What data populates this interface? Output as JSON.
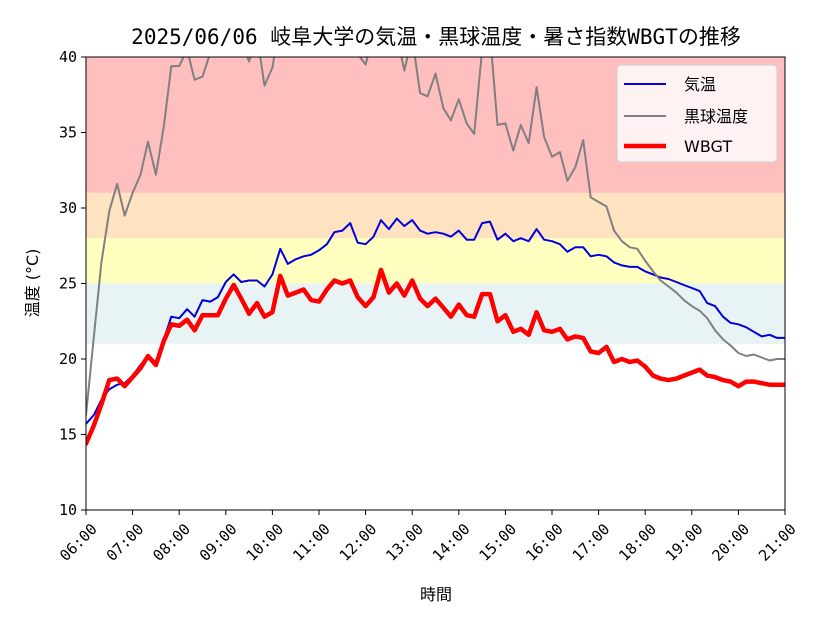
{
  "chart_data": {
    "type": "line",
    "title": "2025/06/06 岐阜大学の気温・黒球温度・暑さ指数WBGTの推移",
    "xlabel": "時間",
    "ylabel": "温度 (°C)",
    "xlim": [
      6.0,
      21.0
    ],
    "ylim": [
      10,
      40
    ],
    "x_ticks": [
      "06:00",
      "07:00",
      "08:00",
      "09:00",
      "10:00",
      "11:00",
      "12:00",
      "13:00",
      "14:00",
      "15:00",
      "16:00",
      "17:00",
      "18:00",
      "19:00",
      "20:00",
      "21:00"
    ],
    "y_ticks": [
      "10",
      "15",
      "20",
      "25",
      "30",
      "35",
      "40"
    ],
    "legend_position": "top-right",
    "bands": [
      {
        "from": 31,
        "to": 40,
        "color": "#ffbfbf"
      },
      {
        "from": 28,
        "to": 31,
        "color": "#ffe2bf"
      },
      {
        "from": 25,
        "to": 28,
        "color": "#ffffbf"
      },
      {
        "from": 21,
        "to": 25,
        "color": "#e8f3f5"
      }
    ],
    "series": [
      {
        "name": "気温",
        "color": "#0000dd",
        "width": 2,
        "points": [
          [
            6.0,
            15.7
          ],
          [
            6.17,
            16.3
          ],
          [
            6.33,
            17.3
          ],
          [
            6.5,
            18.0
          ],
          [
            6.67,
            18.3
          ],
          [
            6.83,
            18.4
          ],
          [
            7.0,
            18.9
          ],
          [
            7.17,
            19.6
          ],
          [
            7.33,
            20.2
          ],
          [
            7.5,
            19.8
          ],
          [
            7.67,
            21.3
          ],
          [
            7.83,
            22.8
          ],
          [
            8.0,
            22.7
          ],
          [
            8.17,
            23.3
          ],
          [
            8.33,
            22.8
          ],
          [
            8.5,
            23.9
          ],
          [
            8.67,
            23.8
          ],
          [
            8.83,
            24.1
          ],
          [
            9.0,
            25.1
          ],
          [
            9.17,
            25.6
          ],
          [
            9.33,
            25.1
          ],
          [
            9.5,
            25.2
          ],
          [
            9.67,
            25.2
          ],
          [
            9.83,
            24.8
          ],
          [
            10.0,
            25.6
          ],
          [
            10.17,
            27.3
          ],
          [
            10.33,
            26.3
          ],
          [
            10.5,
            26.6
          ],
          [
            10.67,
            26.8
          ],
          [
            10.83,
            26.9
          ],
          [
            11.0,
            27.2
          ],
          [
            11.17,
            27.6
          ],
          [
            11.33,
            28.4
          ],
          [
            11.5,
            28.5
          ],
          [
            11.67,
            29.0
          ],
          [
            11.83,
            27.7
          ],
          [
            12.0,
            27.6
          ],
          [
            12.17,
            28.1
          ],
          [
            12.33,
            29.2
          ],
          [
            12.5,
            28.6
          ],
          [
            12.67,
            29.3
          ],
          [
            12.83,
            28.8
          ],
          [
            13.0,
            29.2
          ],
          [
            13.17,
            28.5
          ],
          [
            13.33,
            28.3
          ],
          [
            13.5,
            28.4
          ],
          [
            13.67,
            28.3
          ],
          [
            13.83,
            28.1
          ],
          [
            14.0,
            28.5
          ],
          [
            14.17,
            27.9
          ],
          [
            14.33,
            27.9
          ],
          [
            14.5,
            29.0
          ],
          [
            14.67,
            29.1
          ],
          [
            14.83,
            27.9
          ],
          [
            15.0,
            28.3
          ],
          [
            15.17,
            27.8
          ],
          [
            15.33,
            28.0
          ],
          [
            15.5,
            27.8
          ],
          [
            15.67,
            28.6
          ],
          [
            15.83,
            27.9
          ],
          [
            16.0,
            27.8
          ],
          [
            16.17,
            27.6
          ],
          [
            16.33,
            27.1
          ],
          [
            16.5,
            27.4
          ],
          [
            16.67,
            27.4
          ],
          [
            16.83,
            26.8
          ],
          [
            17.0,
            26.9
          ],
          [
            17.17,
            26.8
          ],
          [
            17.33,
            26.4
          ],
          [
            17.5,
            26.2
          ],
          [
            17.67,
            26.1
          ],
          [
            17.83,
            26.1
          ],
          [
            18.0,
            25.8
          ],
          [
            18.17,
            25.6
          ],
          [
            18.33,
            25.4
          ],
          [
            18.5,
            25.3
          ],
          [
            18.67,
            25.1
          ],
          [
            18.83,
            24.9
          ],
          [
            19.0,
            24.7
          ],
          [
            19.17,
            24.5
          ],
          [
            19.33,
            23.7
          ],
          [
            19.5,
            23.5
          ],
          [
            19.67,
            22.8
          ],
          [
            19.83,
            22.4
          ],
          [
            20.0,
            22.3
          ],
          [
            20.17,
            22.1
          ],
          [
            20.33,
            21.8
          ],
          [
            20.5,
            21.5
          ],
          [
            20.67,
            21.6
          ],
          [
            20.83,
            21.4
          ],
          [
            21.0,
            21.4
          ]
        ]
      },
      {
        "name": "黒球温度",
        "color": "#808080",
        "width": 2,
        "points": [
          [
            6.0,
            16.3
          ],
          [
            6.17,
            21.5
          ],
          [
            6.33,
            26.4
          ],
          [
            6.5,
            29.8
          ],
          [
            6.67,
            31.6
          ],
          [
            6.83,
            29.5
          ],
          [
            7.0,
            31.0
          ],
          [
            7.17,
            32.2
          ],
          [
            7.33,
            34.4
          ],
          [
            7.5,
            32.2
          ],
          [
            7.67,
            35.4
          ],
          [
            7.83,
            39.4
          ],
          [
            8.0,
            39.4
          ],
          [
            8.17,
            40.5
          ],
          [
            8.33,
            38.5
          ],
          [
            8.5,
            38.7
          ],
          [
            8.67,
            40.3
          ],
          [
            8.83,
            41.0
          ],
          [
            9.0,
            41.5
          ],
          [
            9.17,
            41.2
          ],
          [
            9.33,
            41.0
          ],
          [
            9.5,
            39.7
          ],
          [
            9.67,
            41.5
          ],
          [
            9.83,
            38.1
          ],
          [
            10.0,
            39.3
          ],
          [
            10.17,
            42.5
          ],
          [
            10.33,
            42.5
          ],
          [
            10.5,
            42.5
          ],
          [
            10.67,
            42.0
          ],
          [
            10.83,
            42.0
          ],
          [
            11.0,
            42.5
          ],
          [
            11.17,
            42.5
          ],
          [
            11.33,
            42.0
          ],
          [
            11.5,
            41.5
          ],
          [
            11.67,
            41.0
          ],
          [
            11.83,
            40.2
          ],
          [
            12.0,
            39.5
          ],
          [
            12.17,
            41.5
          ],
          [
            12.33,
            42.0
          ],
          [
            12.5,
            41.0
          ],
          [
            12.67,
            41.5
          ],
          [
            12.83,
            39.1
          ],
          [
            13.0,
            41.3
          ],
          [
            13.17,
            37.6
          ],
          [
            13.33,
            37.4
          ],
          [
            13.5,
            38.9
          ],
          [
            13.67,
            36.6
          ],
          [
            13.83,
            35.8
          ],
          [
            14.0,
            37.2
          ],
          [
            14.17,
            35.6
          ],
          [
            14.33,
            34.9
          ],
          [
            14.5,
            40.5
          ],
          [
            14.67,
            41.5
          ],
          [
            14.83,
            35.5
          ],
          [
            15.0,
            35.6
          ],
          [
            15.17,
            33.8
          ],
          [
            15.33,
            35.5
          ],
          [
            15.5,
            34.3
          ],
          [
            15.67,
            38.0
          ],
          [
            15.83,
            34.7
          ],
          [
            16.0,
            33.4
          ],
          [
            16.17,
            33.7
          ],
          [
            16.33,
            31.8
          ],
          [
            16.5,
            32.7
          ],
          [
            16.67,
            34.5
          ],
          [
            16.83,
            30.7
          ],
          [
            17.0,
            30.4
          ],
          [
            17.17,
            30.1
          ],
          [
            17.33,
            28.5
          ],
          [
            17.5,
            27.8
          ],
          [
            17.67,
            27.4
          ],
          [
            17.83,
            27.3
          ],
          [
            18.0,
            26.5
          ],
          [
            18.17,
            25.8
          ],
          [
            18.33,
            25.2
          ],
          [
            18.5,
            24.8
          ],
          [
            18.67,
            24.4
          ],
          [
            18.83,
            23.9
          ],
          [
            19.0,
            23.5
          ],
          [
            19.17,
            23.2
          ],
          [
            19.33,
            22.7
          ],
          [
            19.5,
            21.9
          ],
          [
            19.67,
            21.3
          ],
          [
            19.83,
            20.9
          ],
          [
            20.0,
            20.4
          ],
          [
            20.17,
            20.2
          ],
          [
            20.33,
            20.3
          ],
          [
            20.5,
            20.1
          ],
          [
            20.67,
            19.9
          ],
          [
            20.83,
            20.0
          ],
          [
            21.0,
            20.0
          ]
        ]
      },
      {
        "name": "WBGT",
        "color": "#ff0000",
        "width": 4.5,
        "points": [
          [
            6.0,
            14.4
          ],
          [
            6.17,
            15.6
          ],
          [
            6.33,
            17.0
          ],
          [
            6.5,
            18.6
          ],
          [
            6.67,
            18.7
          ],
          [
            6.83,
            18.2
          ],
          [
            7.0,
            18.8
          ],
          [
            7.17,
            19.4
          ],
          [
            7.33,
            20.2
          ],
          [
            7.5,
            19.6
          ],
          [
            7.67,
            21.2
          ],
          [
            7.83,
            22.3
          ],
          [
            8.0,
            22.2
          ],
          [
            8.17,
            22.6
          ],
          [
            8.33,
            21.9
          ],
          [
            8.5,
            22.9
          ],
          [
            8.67,
            22.9
          ],
          [
            8.83,
            22.9
          ],
          [
            9.0,
            24.0
          ],
          [
            9.17,
            24.9
          ],
          [
            9.33,
            24.0
          ],
          [
            9.5,
            23.0
          ],
          [
            9.67,
            23.7
          ],
          [
            9.83,
            22.8
          ],
          [
            10.0,
            23.1
          ],
          [
            10.17,
            25.5
          ],
          [
            10.33,
            24.2
          ],
          [
            10.5,
            24.4
          ],
          [
            10.67,
            24.6
          ],
          [
            10.83,
            23.9
          ],
          [
            11.0,
            23.8
          ],
          [
            11.17,
            24.6
          ],
          [
            11.33,
            25.2
          ],
          [
            11.5,
            25.0
          ],
          [
            11.67,
            25.2
          ],
          [
            11.83,
            24.1
          ],
          [
            12.0,
            23.5
          ],
          [
            12.17,
            24.1
          ],
          [
            12.33,
            25.9
          ],
          [
            12.5,
            24.4
          ],
          [
            12.67,
            25.0
          ],
          [
            12.83,
            24.2
          ],
          [
            13.0,
            25.2
          ],
          [
            13.17,
            24.0
          ],
          [
            13.33,
            23.5
          ],
          [
            13.5,
            24.0
          ],
          [
            13.67,
            23.4
          ],
          [
            13.83,
            22.8
          ],
          [
            14.0,
            23.6
          ],
          [
            14.17,
            22.9
          ],
          [
            14.33,
            22.8
          ],
          [
            14.5,
            24.3
          ],
          [
            14.67,
            24.3
          ],
          [
            14.83,
            22.5
          ],
          [
            15.0,
            22.9
          ],
          [
            15.17,
            21.8
          ],
          [
            15.33,
            22.0
          ],
          [
            15.5,
            21.6
          ],
          [
            15.67,
            23.1
          ],
          [
            15.83,
            21.9
          ],
          [
            16.0,
            21.8
          ],
          [
            16.17,
            22.0
          ],
          [
            16.33,
            21.3
          ],
          [
            16.5,
            21.5
          ],
          [
            16.67,
            21.4
          ],
          [
            16.83,
            20.5
          ],
          [
            17.0,
            20.4
          ],
          [
            17.17,
            20.8
          ],
          [
            17.33,
            19.8
          ],
          [
            17.5,
            20.0
          ],
          [
            17.67,
            19.8
          ],
          [
            17.83,
            19.9
          ],
          [
            18.0,
            19.5
          ],
          [
            18.17,
            18.9
          ],
          [
            18.33,
            18.7
          ],
          [
            18.5,
            18.6
          ],
          [
            18.67,
            18.7
          ],
          [
            18.83,
            18.9
          ],
          [
            19.0,
            19.1
          ],
          [
            19.17,
            19.3
          ],
          [
            19.33,
            18.9
          ],
          [
            19.5,
            18.8
          ],
          [
            19.67,
            18.6
          ],
          [
            19.83,
            18.5
          ],
          [
            20.0,
            18.2
          ],
          [
            20.17,
            18.5
          ],
          [
            20.33,
            18.5
          ],
          [
            20.5,
            18.4
          ],
          [
            20.67,
            18.3
          ],
          [
            20.83,
            18.3
          ],
          [
            21.0,
            18.3
          ]
        ]
      }
    ]
  }
}
